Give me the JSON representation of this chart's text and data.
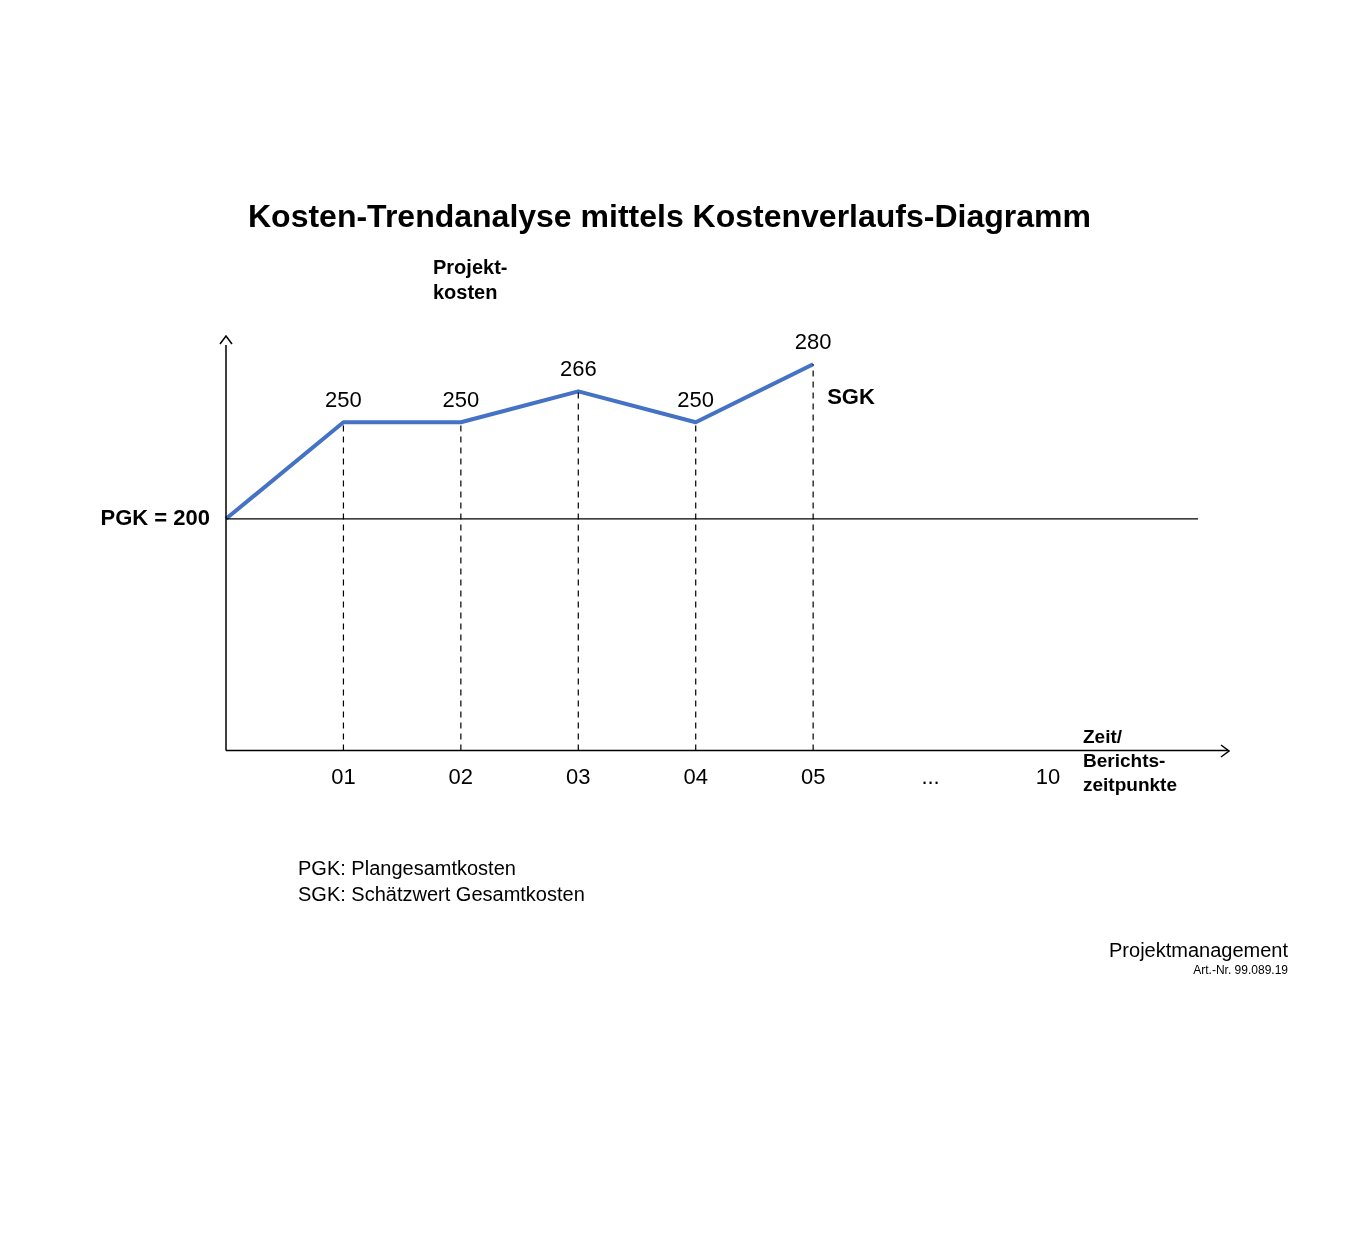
{
  "chart_data": {
    "type": "line",
    "title": "Kosten-Trendanalyse mittels Kostenverlaufs-Diagramm",
    "ylabel": "Projekt-\nkosten",
    "xlabel": "Zeit/\nBerichts-\nzeitpunkte",
    "categories": [
      null,
      "01",
      "02",
      "03",
      "04",
      "05",
      "...",
      "10"
    ],
    "series": [
      {
        "color": "#4472c4",
        "values": [
          200,
          250,
          250,
          266,
          250,
          280,
          null,
          null
        ],
        "value_labels": [
          null,
          "250",
          "250",
          "266",
          "250",
          "280",
          null,
          null
        ]
      }
    ],
    "ylim": [
      80,
      290
    ],
    "tick_labels": "x",
    "grid": false,
    "legend": false,
    "ref_lines": [
      {
        "axis": "y",
        "value": 200,
        "label": "PGK = 200",
        "color": "#000000",
        "line_style": "solid"
      },
      {
        "axis": "x",
        "value": "01",
        "color": "#000000",
        "line_style": "dashed"
      },
      {
        "axis": "x",
        "value": "02",
        "color": "#000000",
        "line_style": "dashed"
      },
      {
        "axis": "x",
        "value": "03",
        "color": "#000000",
        "line_style": "dashed"
      },
      {
        "axis": "x",
        "value": "04",
        "color": "#000000",
        "line_style": "dashed"
      },
      {
        "axis": "x",
        "value": "05",
        "color": "#000000",
        "line_style": "dashed"
      }
    ],
    "annotations": [
      {
        "text": "SGK",
        "x": "05",
        "y": 280
      },
      "PGK: Plangesamtkosten",
      "SGK: Schätzwert Gesamtkosten",
      "Projektmanagement",
      "Art.-Nr. 99.089.19"
    ]
  }
}
